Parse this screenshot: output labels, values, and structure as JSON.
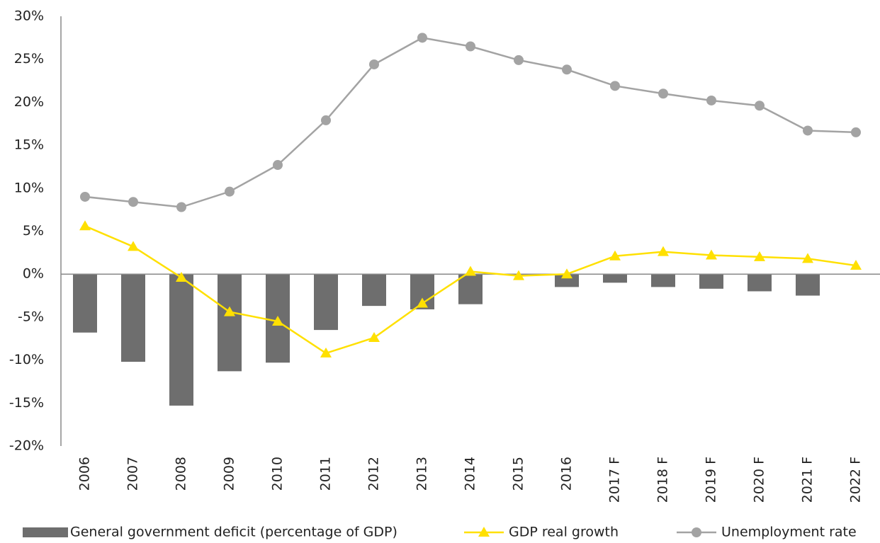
{
  "chart_data": {
    "type": "bar-line",
    "categories": [
      "2006",
      "2007",
      "2008",
      "2009",
      "2010",
      "2011",
      "2012",
      "2013",
      "2014",
      "2015",
      "2016",
      "2017 F",
      "2018 F",
      "2019 F",
      "2020 F",
      "2021 F",
      "2022 F"
    ],
    "series": [
      {
        "name": "General government deficit (percentage of GDP)",
        "type": "bar",
        "color": "#6e6e6e",
        "values": [
          -6.8,
          -10.2,
          -15.3,
          -11.3,
          -10.3,
          -6.5,
          -3.7,
          -4.1,
          -3.5,
          -0.1,
          -1.5,
          -1.0,
          -1.5,
          -1.7,
          -2.0,
          -2.5,
          null
        ]
      },
      {
        "name": "GDP real growth",
        "type": "line",
        "marker": "triangle",
        "color": "#ffe000",
        "values": [
          5.6,
          3.2,
          -0.4,
          -4.4,
          -5.5,
          -9.2,
          -7.4,
          -3.4,
          0.3,
          -0.2,
          0.0,
          2.1,
          2.6,
          2.2,
          2.0,
          1.8,
          1.0
        ]
      },
      {
        "name": "Unemployment rate",
        "type": "line",
        "marker": "circle",
        "color": "#a3a3a3",
        "values": [
          9.0,
          8.4,
          7.8,
          9.6,
          12.7,
          17.9,
          24.4,
          27.5,
          26.5,
          24.9,
          23.8,
          21.9,
          21.0,
          20.2,
          19.6,
          16.7,
          16.5
        ]
      }
    ],
    "ylim": [
      -20,
      30
    ],
    "yticks": [
      {
        "value": -20,
        "label": "-20%"
      },
      {
        "value": -15,
        "label": "-15%"
      },
      {
        "value": -10,
        "label": "-10%"
      },
      {
        "value": -5,
        "label": "-5%"
      },
      {
        "value": 0,
        "label": "0%"
      },
      {
        "value": 5,
        "label": "5%"
      },
      {
        "value": 10,
        "label": "10%"
      },
      {
        "value": 15,
        "label": "15%"
      },
      {
        "value": 20,
        "label": "20%"
      },
      {
        "value": 25,
        "label": "25%"
      },
      {
        "value": 30,
        "label": "30%"
      }
    ],
    "legend": "bottom"
  }
}
